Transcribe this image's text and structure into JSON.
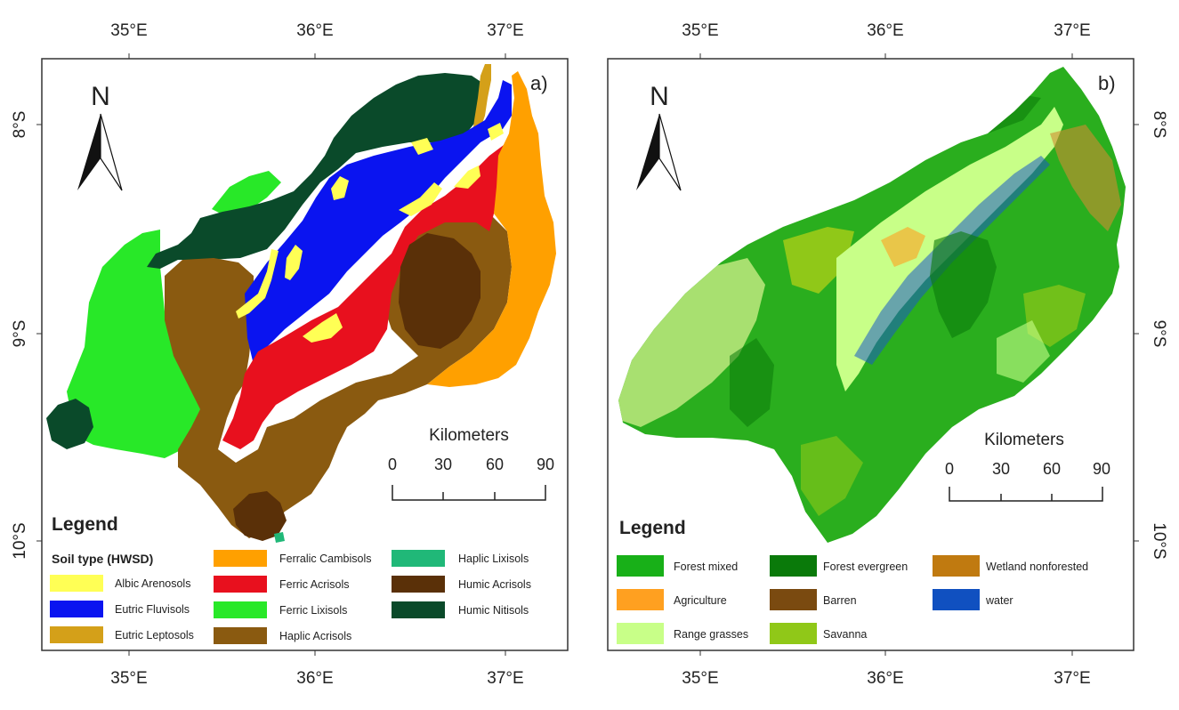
{
  "graticule": {
    "lon_labels": [
      "35°E",
      "36°E",
      "37°E"
    ],
    "lat_labels": [
      "8°S",
      "9°S",
      "10°S"
    ]
  },
  "panel_a": {
    "label": "a)",
    "north": "N",
    "scale": {
      "title": "Kilometers",
      "ticks": [
        "0",
        "30",
        "60",
        "90"
      ]
    },
    "legend": {
      "title": "Legend",
      "subtitle": "Soil type (HWSD)",
      "items": [
        {
          "label": "Albic Arenosols",
          "color": "#ffff55"
        },
        {
          "label": "Eutric Fluvisols",
          "color": "#0a14f0"
        },
        {
          "label": "Eutric Leptosols",
          "color": "#d4a019"
        },
        {
          "label": "Ferralic Cambisols",
          "color": "#ffa000"
        },
        {
          "label": "Ferric Acrisols",
          "color": "#e8101e"
        },
        {
          "label": "Ferric Lixisols",
          "color": "#28e828"
        },
        {
          "label": "Haplic Acrisols",
          "color": "#8a5a10"
        },
        {
          "label": "Haplic Lixisols",
          "color": "#20b878"
        },
        {
          "label": "Humic Acrisols",
          "color": "#5a3008"
        },
        {
          "label": "Humic Nitisols",
          "color": "#0a4a2a"
        }
      ]
    }
  },
  "panel_b": {
    "label": "b)",
    "north": "N",
    "scale": {
      "title": "Kilometers",
      "ticks": [
        "0",
        "30",
        "60",
        "90"
      ]
    },
    "legend": {
      "title": "Legend",
      "items": [
        {
          "label": "Forest mixed",
          "color": "#18b018"
        },
        {
          "label": "Agriculture",
          "color": "#ffa020"
        },
        {
          "label": "Range grasses",
          "color": "#c8ff88"
        },
        {
          "label": "Forest evergreen",
          "color": "#0a7a0a"
        },
        {
          "label": "Barren",
          "color": "#7a4a10"
        },
        {
          "label": "Savanna",
          "color": "#90c818"
        },
        {
          "label": "Wetland nonforested",
          "color": "#c07a10"
        },
        {
          "label": "water",
          "color": "#1050c0"
        }
      ]
    }
  }
}
